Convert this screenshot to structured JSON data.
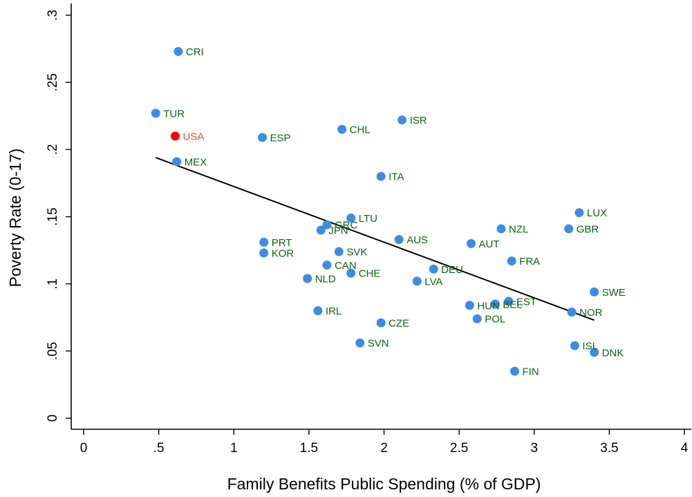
{
  "chart_data": {
    "type": "scatter",
    "title": "",
    "xlabel": "Family Benefits Public Spending (% of GDP)",
    "ylabel": "Poverty Rate (0-17)",
    "xlim": [
      0,
      4
    ],
    "ylim": [
      0,
      0.3
    ],
    "xticks": [
      {
        "value": 0,
        "label": "0"
      },
      {
        "value": 0.5,
        "label": ".5"
      },
      {
        "value": 1,
        "label": "1"
      },
      {
        "value": 1.5,
        "label": "1.5"
      },
      {
        "value": 2,
        "label": "2"
      },
      {
        "value": 2.5,
        "label": "2.5"
      },
      {
        "value": 3,
        "label": "3"
      },
      {
        "value": 3.5,
        "label": "3.5"
      },
      {
        "value": 4,
        "label": "4"
      }
    ],
    "yticks": [
      {
        "value": 0,
        "label": "0"
      },
      {
        "value": 0.05,
        "label": ".05"
      },
      {
        "value": 0.1,
        "label": ".1"
      },
      {
        "value": 0.15,
        "label": ".15"
      },
      {
        "value": 0.2,
        "label": ".2"
      },
      {
        "value": 0.25,
        "label": ".25"
      },
      {
        "value": 0.3,
        "label": ".3"
      }
    ],
    "grid": false,
    "marker_color": "#3c8ce6",
    "label_color": "#0a6414",
    "highlight_color": "#ff0000",
    "highlight_label_color": "#e8501e",
    "fit_line": {
      "x": [
        0.48,
        3.4
      ],
      "y": [
        0.194,
        0.073
      ],
      "color": "#000000"
    },
    "points": [
      {
        "label": "CRI",
        "x": 0.63,
        "y": 0.273
      },
      {
        "label": "TUR",
        "x": 0.48,
        "y": 0.227
      },
      {
        "label": "USA",
        "x": 0.61,
        "y": 0.21,
        "highlight": true
      },
      {
        "label": "MEX",
        "x": 0.62,
        "y": 0.191
      },
      {
        "label": "ESP",
        "x": 1.19,
        "y": 0.209
      },
      {
        "label": "CHL",
        "x": 1.72,
        "y": 0.215
      },
      {
        "label": "ISR",
        "x": 2.12,
        "y": 0.222
      },
      {
        "label": "ITA",
        "x": 1.98,
        "y": 0.18
      },
      {
        "label": "LTU",
        "x": 1.78,
        "y": 0.149
      },
      {
        "label": "GRC",
        "x": 1.62,
        "y": 0.144
      },
      {
        "label": "JPN",
        "x": 1.58,
        "y": 0.14
      },
      {
        "label": "PRT",
        "x": 1.2,
        "y": 0.131
      },
      {
        "label": "KOR",
        "x": 1.2,
        "y": 0.123
      },
      {
        "label": "SVK",
        "x": 1.7,
        "y": 0.124
      },
      {
        "label": "AUS",
        "x": 2.1,
        "y": 0.133
      },
      {
        "label": "CAN",
        "x": 1.62,
        "y": 0.114
      },
      {
        "label": "CHE",
        "x": 1.78,
        "y": 0.108
      },
      {
        "label": "NLD",
        "x": 1.49,
        "y": 0.104
      },
      {
        "label": "DEU",
        "x": 2.33,
        "y": 0.111
      },
      {
        "label": "LVA",
        "x": 2.22,
        "y": 0.102
      },
      {
        "label": "IRL",
        "x": 1.56,
        "y": 0.08
      },
      {
        "label": "CZE",
        "x": 1.98,
        "y": 0.071
      },
      {
        "label": "SVN",
        "x": 1.84,
        "y": 0.056
      },
      {
        "label": "NZL",
        "x": 2.78,
        "y": 0.141
      },
      {
        "label": "AUT",
        "x": 2.58,
        "y": 0.13
      },
      {
        "label": "FRA",
        "x": 2.85,
        "y": 0.117
      },
      {
        "label": "HUN",
        "x": 2.57,
        "y": 0.084
      },
      {
        "label": "BEL",
        "x": 2.74,
        "y": 0.085
      },
      {
        "label": "EST",
        "x": 2.83,
        "y": 0.087
      },
      {
        "label": "POL",
        "x": 2.62,
        "y": 0.074
      },
      {
        "label": "FIN",
        "x": 2.87,
        "y": 0.035
      },
      {
        "label": "LUX",
        "x": 3.3,
        "y": 0.153
      },
      {
        "label": "GBR",
        "x": 3.23,
        "y": 0.141
      },
      {
        "label": "SWE",
        "x": 3.4,
        "y": 0.094
      },
      {
        "label": "NOR",
        "x": 3.25,
        "y": 0.079
      },
      {
        "label": "ISL",
        "x": 3.27,
        "y": 0.054
      },
      {
        "label": "DNK",
        "x": 3.4,
        "y": 0.049
      }
    ]
  }
}
